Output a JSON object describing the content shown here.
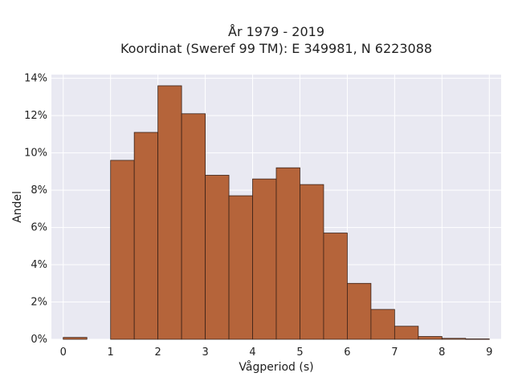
{
  "chart_data": {
    "type": "bar",
    "title": "År 1979 - 2019",
    "subtitle": "Koordinat (Sweref 99 TM): E 349981, N 6223088",
    "xlabel": "Vågperiod (s)",
    "ylabel": "Andel",
    "bin_edges": [
      0,
      0.5,
      1,
      1.5,
      2,
      2.5,
      3,
      3.5,
      4,
      4.5,
      5,
      5.5,
      6,
      6.5,
      7,
      7.5,
      8,
      8.5,
      9
    ],
    "values": [
      0.1,
      0.0,
      9.6,
      11.1,
      13.6,
      12.1,
      8.8,
      7.7,
      8.6,
      9.2,
      8.3,
      5.7,
      3.0,
      1.6,
      0.7,
      0.15,
      0.05,
      0.02
    ],
    "xticks": [
      0,
      1,
      2,
      3,
      4,
      5,
      6,
      7,
      8,
      9
    ],
    "yticks": [
      0,
      2,
      4,
      6,
      8,
      10,
      12,
      14
    ],
    "ytick_suffix": "%",
    "xlim": [
      -0.25,
      9.25
    ],
    "ylim": [
      0,
      14.2
    ],
    "grid": true,
    "colors": {
      "plot_background": "#e9e9f2",
      "grid": "#ffffff",
      "bar_fill": "#b5643a",
      "bar_stroke": "#3a2218"
    }
  }
}
